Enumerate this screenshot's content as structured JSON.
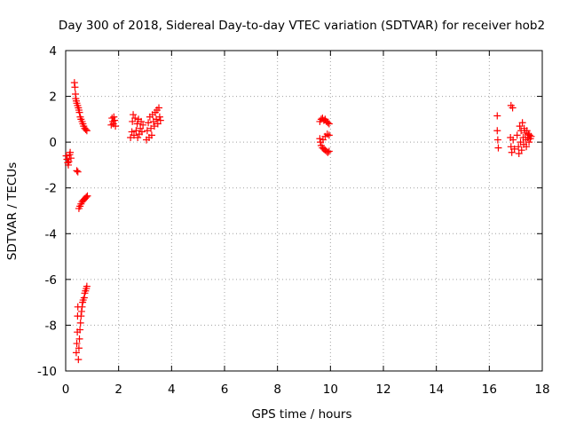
{
  "chart_data": {
    "type": "scatter",
    "title": "Day 300 of 2018, Sidereal Day-to-day VTEC variation (SDTVAR) for receiver hob2",
    "xlabel": "GPS time / hours",
    "ylabel": "SDTVAR / TECUs",
    "xlim": [
      0,
      18
    ],
    "ylim": [
      -10,
      4
    ],
    "xticks": [
      "0",
      "2",
      "4",
      "6",
      "8",
      "10",
      "12",
      "14",
      "16",
      "18"
    ],
    "yticks": [
      "-10",
      "-8",
      "-6",
      "-4",
      "-2",
      "0",
      "2",
      "4"
    ],
    "grid": true,
    "marker": "plus",
    "color": "#ff0000",
    "series": [
      {
        "values": [
          [
            0.02,
            -0.6
          ],
          [
            0.05,
            -0.75
          ],
          [
            0.08,
            -0.9
          ],
          [
            0.1,
            -1.0
          ],
          [
            0.12,
            -0.85
          ],
          [
            0.15,
            -0.55
          ],
          [
            0.17,
            -0.45
          ],
          [
            0.2,
            -0.7
          ],
          [
            0.33,
            2.6
          ],
          [
            0.35,
            2.4
          ],
          [
            0.37,
            2.1
          ],
          [
            0.38,
            1.9
          ],
          [
            0.4,
            1.8
          ],
          [
            0.42,
            1.7
          ],
          [
            0.45,
            1.6
          ],
          [
            0.48,
            1.5
          ],
          [
            0.5,
            1.4
          ],
          [
            0.52,
            1.3
          ],
          [
            0.55,
            1.1
          ],
          [
            0.58,
            1.0
          ],
          [
            0.62,
            0.9
          ],
          [
            0.65,
            0.8
          ],
          [
            0.68,
            0.7
          ],
          [
            0.72,
            0.6
          ],
          [
            0.76,
            0.55
          ],
          [
            0.8,
            0.5
          ],
          [
            0.42,
            -1.25
          ],
          [
            0.46,
            -1.3
          ],
          [
            0.5,
            -2.9
          ],
          [
            0.54,
            -2.8
          ],
          [
            0.58,
            -2.7
          ],
          [
            0.62,
            -2.6
          ],
          [
            0.66,
            -2.55
          ],
          [
            0.7,
            -2.5
          ],
          [
            0.74,
            -2.45
          ],
          [
            0.78,
            -2.4
          ],
          [
            0.82,
            -2.35
          ],
          [
            0.4,
            -9.2
          ],
          [
            0.42,
            -8.8
          ],
          [
            0.44,
            -8.3
          ],
          [
            0.45,
            -7.6
          ],
          [
            0.46,
            -7.2
          ],
          [
            0.48,
            -9.5
          ],
          [
            0.5,
            -9.0
          ],
          [
            0.52,
            -8.6
          ],
          [
            0.54,
            -8.2
          ],
          [
            0.56,
            -7.9
          ],
          [
            0.58,
            -7.6
          ],
          [
            0.6,
            -7.4
          ],
          [
            0.62,
            -7.2
          ],
          [
            0.64,
            -7.0
          ],
          [
            0.66,
            -6.9
          ],
          [
            0.7,
            -6.8
          ],
          [
            0.72,
            -6.6
          ],
          [
            0.75,
            -6.5
          ],
          [
            0.78,
            -6.4
          ],
          [
            0.8,
            -6.3
          ],
          [
            1.72,
            0.75
          ],
          [
            1.75,
            1.05
          ],
          [
            1.78,
            0.9
          ],
          [
            1.8,
            0.8
          ],
          [
            1.82,
            1.1
          ],
          [
            1.85,
            0.95
          ],
          [
            1.88,
            0.7
          ],
          [
            2.45,
            0.2
          ],
          [
            2.5,
            0.45
          ],
          [
            2.52,
            0.9
          ],
          [
            2.55,
            1.2
          ],
          [
            2.58,
            0.3
          ],
          [
            2.62,
            1.05
          ],
          [
            2.66,
            0.5
          ],
          [
            2.7,
            0.8
          ],
          [
            2.72,
            0.2
          ],
          [
            2.75,
            1.0
          ],
          [
            2.78,
            0.35
          ],
          [
            2.82,
            0.6
          ],
          [
            2.85,
            0.9
          ],
          [
            2.88,
            0.45
          ],
          [
            2.92,
            0.75
          ],
          [
            3.05,
            0.1
          ],
          [
            3.08,
            0.5
          ],
          [
            3.12,
            0.85
          ],
          [
            3.15,
            0.2
          ],
          [
            3.18,
            1.1
          ],
          [
            3.22,
            0.6
          ],
          [
            3.25,
            0.3
          ],
          [
            3.28,
            1.2
          ],
          [
            3.32,
            0.9
          ],
          [
            3.35,
            0.7
          ],
          [
            3.38,
            1.3
          ],
          [
            3.42,
            1.0
          ],
          [
            3.45,
            1.4
          ],
          [
            3.48,
            0.8
          ],
          [
            3.52,
            1.5
          ],
          [
            3.55,
            1.1
          ],
          [
            3.58,
            0.95
          ],
          [
            9.6,
            0.9
          ],
          [
            9.65,
            1.0
          ],
          [
            9.7,
            1.05
          ],
          [
            9.75,
            0.95
          ],
          [
            9.8,
            1.0
          ],
          [
            9.85,
            0.9
          ],
          [
            9.9,
            0.85
          ],
          [
            9.95,
            0.8
          ],
          [
            9.6,
            0.15
          ],
          [
            9.62,
            0.0
          ],
          [
            9.65,
            -0.15
          ],
          [
            9.7,
            -0.25
          ],
          [
            9.75,
            -0.3
          ],
          [
            9.8,
            -0.35
          ],
          [
            9.85,
            -0.4
          ],
          [
            9.9,
            -0.45
          ],
          [
            9.95,
            -0.4
          ],
          [
            9.72,
            0.1
          ],
          [
            9.8,
            0.25
          ],
          [
            9.88,
            0.35
          ],
          [
            9.95,
            0.3
          ],
          [
            16.3,
            1.15
          ],
          [
            16.3,
            0.5
          ],
          [
            16.32,
            0.1
          ],
          [
            16.34,
            -0.25
          ],
          [
            16.82,
            1.6
          ],
          [
            16.88,
            1.5
          ],
          [
            16.8,
            0.2
          ],
          [
            16.82,
            -0.2
          ],
          [
            16.85,
            -0.45
          ],
          [
            16.9,
            0.1
          ],
          [
            16.95,
            -0.3
          ],
          [
            17.05,
            0.3
          ],
          [
            17.1,
            -0.2
          ],
          [
            17.12,
            -0.5
          ],
          [
            17.15,
            0.7
          ],
          [
            17.18,
            0.0
          ],
          [
            17.2,
            0.5
          ],
          [
            17.22,
            -0.35
          ],
          [
            17.25,
            0.85
          ],
          [
            17.28,
            0.2
          ],
          [
            17.3,
            -0.1
          ],
          [
            17.32,
            0.6
          ],
          [
            17.35,
            0.4
          ],
          [
            17.38,
            0.1
          ],
          [
            17.4,
            -0.2
          ],
          [
            17.42,
            0.5
          ],
          [
            17.45,
            0.2
          ],
          [
            17.48,
            0.35
          ],
          [
            17.5,
            0.0
          ],
          [
            17.52,
            0.3
          ],
          [
            17.55,
            0.15
          ],
          [
            17.58,
            0.25
          ]
        ]
      }
    ]
  }
}
